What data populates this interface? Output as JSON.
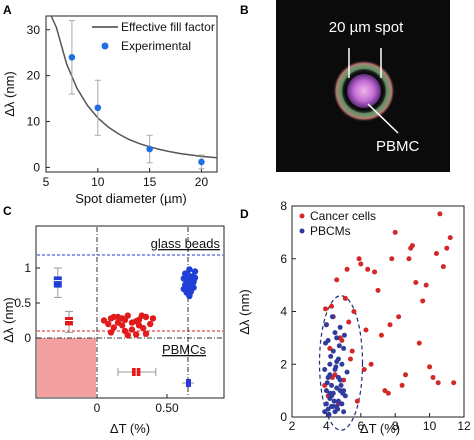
{
  "panels": {
    "A": {
      "label": "A",
      "chart_data": {
        "type": "scatter",
        "xlabel": "Spot diameter (µm)",
        "ylabel": "Δλ (nm)",
        "xlim": [
          5,
          21.5
        ],
        "ylim": [
          -1,
          33
        ],
        "xticks": [
          "5",
          "10",
          "15",
          "20"
        ],
        "yticks": [
          "0",
          "10",
          "20",
          "30"
        ],
        "legend": {
          "line": "Effective fill factor",
          "points": "Experimental",
          "position": "top-right"
        },
        "series": [
          {
            "name": "Effective fill factor",
            "kind": "line",
            "x": [
              5.5,
              6,
              7,
              8,
              9,
              10,
              11,
              12,
              13,
              14,
              15,
              16,
              17,
              18,
              19,
              20,
              21.5
            ],
            "y": [
              36.3,
              30.5,
              22.5,
              17.2,
              13.5,
              10.8,
              8.8,
              7.3,
              6.1,
              5.2,
              4.5,
              3.9,
              3.4,
              3.0,
              2.7,
              2.4,
              2.1
            ]
          },
          {
            "name": "Experimental",
            "kind": "points",
            "x": [
              7.5,
              10,
              15,
              20
            ],
            "y": [
              24,
              13,
              4,
              1.2
            ],
            "err": [
              8,
              6,
              3,
              1.5
            ]
          }
        ]
      }
    },
    "B": {
      "label": "B",
      "spot_label": "20 µm spot",
      "cell_label": "PBMC"
    },
    "C": {
      "label": "C",
      "chart_data": {
        "type": "scatter",
        "xlabel": "ΔT (%)",
        "ylabel": "Δλ (nm)",
        "xticks": [
          "0",
          "0.50"
        ],
        "yticks": [
          "0",
          "0.5",
          "1"
        ],
        "annotations": [
          "glass beads",
          "PBMCs"
        ],
        "series": [
          {
            "name": "glass beads",
            "color": "#1f3fd6",
            "hline": 1.2,
            "vline": 0.65,
            "x": [
              0.62,
              0.63,
              0.64,
              0.65,
              0.66,
              0.67,
              0.68,
              0.69,
              0.7,
              0.62,
              0.64,
              0.66,
              0.68,
              0.7,
              0.65,
              0.67,
              0.63,
              0.69,
              0.66,
              0.64
            ],
            "y": [
              0.85,
              0.92,
              0.65,
              0.78,
              0.98,
              0.72,
              0.88,
              0.8,
              0.95,
              0.7,
              0.82,
              0.6,
              0.75,
              0.86,
              0.9,
              0.66,
              0.76,
              0.72,
              0.84,
              0.68
            ],
            "box": {
              "position": -0.28,
              "median": 0.82,
              "q1": 0.72,
              "q3": 0.88,
              "min": 0.58,
              "max": 1.0
            }
          },
          {
            "name": "PBMCs",
            "color": "#e11b1b",
            "hline": 0.1,
            "x": [
              0.05,
              0.08,
              0.1,
              0.12,
              0.15,
              0.18,
              0.2,
              0.22,
              0.25,
              0.28,
              0.3,
              0.33,
              0.35,
              0.38,
              0.4,
              0.1,
              0.15,
              0.2,
              0.25,
              0.3,
              0.35,
              0.22,
              0.18,
              0.32,
              0.28,
              0.12
            ],
            "y": [
              0.25,
              0.2,
              0.28,
              0.15,
              0.3,
              0.18,
              0.1,
              0.32,
              0.22,
              0.05,
              0.26,
              0.14,
              0.3,
              0.2,
              0.28,
              0.08,
              0.22,
              0.26,
              0.12,
              0.18,
              0.06,
              0.04,
              0.28,
              0.32,
              0.24,
              0.3
            ],
            "box": {
              "position": -0.2,
              "median": 0.25,
              "q1": 0.18,
              "q3": 0.3,
              "min": 0.08,
              "max": 0.38
            },
            "box_x": {
              "median": 0.28,
              "q1": 0.25,
              "q3": 0.31,
              "min": 0.15,
              "max": 0.42
            }
          }
        ]
      }
    },
    "D": {
      "label": "D",
      "chart_data": {
        "type": "scatter",
        "xlabel": "ΔT (%)",
        "ylabel": "Δλ (nm)",
        "xlim": [
          2,
          12
        ],
        "ylim": [
          0,
          8
        ],
        "xticks": [
          "2",
          "4",
          "6",
          "8",
          "10",
          "12"
        ],
        "yticks": [
          "0",
          "2",
          "4",
          "6",
          "8"
        ],
        "legend_position": "top-left",
        "series": [
          {
            "name": "Cancer cells",
            "color": "#d42828",
            "x": [
              3.9,
              4.0,
              4.1,
              4.2,
              4.3,
              4.5,
              4.6,
              4.8,
              5.0,
              5.2,
              5.4,
              5.6,
              5.8,
              6.0,
              6.3,
              6.6,
              7.0,
              7.4,
              7.8,
              8.2,
              8.6,
              9.0,
              9.4,
              9.8,
              10.2,
              10.6,
              11.0,
              11.2,
              4.4,
              4.7,
              5.1,
              5.5,
              5.9,
              6.2,
              6.8,
              7.2,
              7.6,
              8.0,
              8.4,
              8.8,
              9.2,
              9.6,
              10.0,
              10.4,
              10.8,
              11.4,
              3.95,
              4.35,
              4.9,
              5.3,
              6.4,
              7.7,
              8.9,
              10.5
            ],
            "y": [
              1.2,
              3.5,
              0.8,
              2.6,
              4.2,
              1.6,
              5.2,
              3.0,
              1.4,
              5.6,
              2.2,
              4.0,
              0.6,
              5.8,
              3.3,
              2.0,
              4.8,
              1.0,
              6.0,
              3.8,
              1.6,
              6.5,
              2.8,
              5.0,
              1.5,
              7.7,
              6.4,
              6.8,
              3.8,
              0.5,
              4.5,
              2.5,
              6.0,
              1.8,
              5.5,
              3.1,
              0.9,
              7.0,
              1.2,
              6.0,
              5.1,
              4.4,
              1.9,
              6.2,
              5.7,
              1.3,
              4.1,
              1.5,
              2.9,
              3.6,
              5.6,
              3.5,
              6.4,
              1.3
            ]
          },
          {
            "name": "PBCMs",
            "color": "#2f3c9e",
            "x": [
              3.9,
              4.0,
              4.0,
              4.1,
              4.1,
              4.2,
              4.2,
              4.3,
              4.3,
              4.4,
              4.4,
              4.5,
              4.5,
              4.6,
              4.6,
              4.7,
              4.7,
              4.8,
              4.8,
              4.9,
              5.0,
              5.0,
              5.1,
              5.2,
              3.95,
              4.05,
              4.15,
              4.25,
              4.35,
              4.45,
              4.55,
              4.65,
              4.75,
              4.85,
              4.95,
              5.05,
              4.0,
              4.2,
              4.4,
              4.6,
              4.8,
              5.0,
              4.1,
              4.3,
              4.5,
              4.7,
              4.9,
              3.9,
              4.2,
              4.6
            ],
            "y": [
              0.2,
              0.5,
              1.0,
              0.3,
              1.5,
              0.7,
              2.0,
              0.4,
              1.2,
              2.5,
              0.9,
              1.8,
              0.2,
              3.0,
              1.1,
              0.6,
              2.2,
              1.4,
              3.4,
              0.5,
              1.0,
              2.6,
              0.8,
              1.7,
              2.8,
              1.3,
              0.1,
              2.3,
              3.8,
              0.6,
              1.9,
              0.3,
              2.7,
              1.2,
              0.9,
              3.1,
              3.5,
              1.6,
              0.4,
              2.1,
              1.0,
              0.2,
              2.9,
              0.8,
              3.2,
              1.5,
              2.0,
              1.8,
              0.9,
              0.4
            ],
            "ellipse": {
              "cx": 4.85,
              "cy": 2.05,
              "rx_data": 1.25,
              "ry_data": 2.55
            }
          }
        ]
      }
    }
  }
}
